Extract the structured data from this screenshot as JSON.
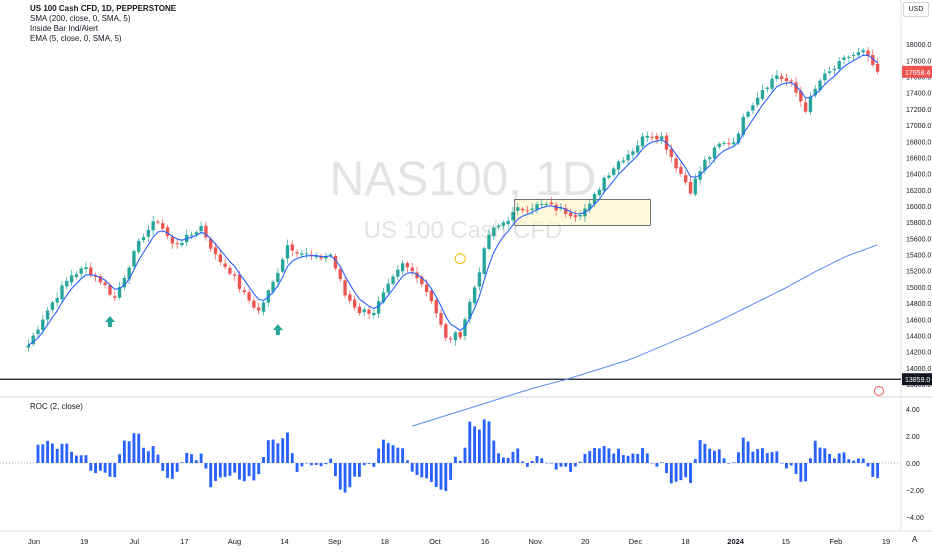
{
  "legend": {
    "line1": "US 100 Cash CFD, 1D, PEPPERSTONE",
    "line2": "SMA (200, close, 0, SMA, 5)",
    "line3": "Inside Bar Ind/Alert",
    "line4": "EMA (5, close, 0, SMA, 5)"
  },
  "watermark": {
    "symbol": "NAS100, 1D",
    "description": "US 100 Cash CFD"
  },
  "currency": "USD",
  "scale_button": "A",
  "price_badges": {
    "last": "17658.4",
    "level": "13859.0"
  },
  "roc_label": "ROC (2, close)",
  "colors": {
    "up": "#26a69a",
    "down": "#ef5350",
    "sma": "#5b8def",
    "ema": "#2962ff",
    "roc": "#2962ff",
    "marker": "#26a69a"
  },
  "chart_data": [
    {
      "type": "candlestick",
      "symbol": "NAS100",
      "timeframe": "1D",
      "ylim": [
        13800,
        18200
      ],
      "y_ticks": [
        13800,
        14000,
        14200,
        14400,
        14600,
        14800,
        15000,
        15200,
        15400,
        15600,
        15800,
        16000,
        16200,
        16400,
        16600,
        16800,
        17000,
        17200,
        17400,
        17600,
        17800,
        18000
      ],
      "x_tick_labels": [
        "Jun",
        "19",
        "Jul",
        "17",
        "Aug",
        "14",
        "Sep",
        "18",
        "Oct",
        "16",
        "Nov",
        "20",
        "Dec",
        "18",
        "2024",
        "15",
        "Feb",
        "19"
      ],
      "horizontal_level": 13859.0,
      "last_price": 17658.4,
      "close_keypoints": [
        14280,
        14620,
        14900,
        15150,
        15230,
        15080,
        14860,
        15280,
        15650,
        15830,
        15520,
        15600,
        15750,
        15380,
        15200,
        14900,
        14700,
        15050,
        15520,
        15420,
        15350,
        15400,
        14900,
        14700,
        14700,
        15000,
        15270,
        15150,
        14850,
        14350,
        14420,
        15000,
        15650,
        15800,
        15950,
        16000,
        16010,
        15950,
        15900,
        16000,
        16350,
        16550,
        16700,
        16900,
        16850,
        16500,
        16200,
        16550,
        16750,
        16800,
        17200,
        17450,
        17620,
        17500,
        17200,
        17550,
        17700,
        17850,
        17900,
        17658.4
      ],
      "sma200_keypoints": [
        13280,
        13400,
        13520,
        13640,
        13760,
        13860,
        13980,
        14100,
        14260,
        14420,
        14600,
        14790,
        14980,
        15190,
        15380,
        15520
      ],
      "sma200_start_index": 80,
      "annotations": [
        "inside-bar-box-1",
        "inside-bar-box-2",
        "up-arrow-1",
        "up-arrow-2",
        "circle-marker"
      ]
    },
    {
      "type": "bar",
      "name": "ROC (2, close)",
      "ylim": [
        -4.5,
        4.5
      ],
      "y_ticks": [
        4.0,
        2.0,
        0.0,
        -2.0,
        -4.0
      ],
      "y_tick_labels": [
        "4.00",
        "2.00",
        "0.00",
        "−2.00",
        "−4.00"
      ]
    }
  ]
}
